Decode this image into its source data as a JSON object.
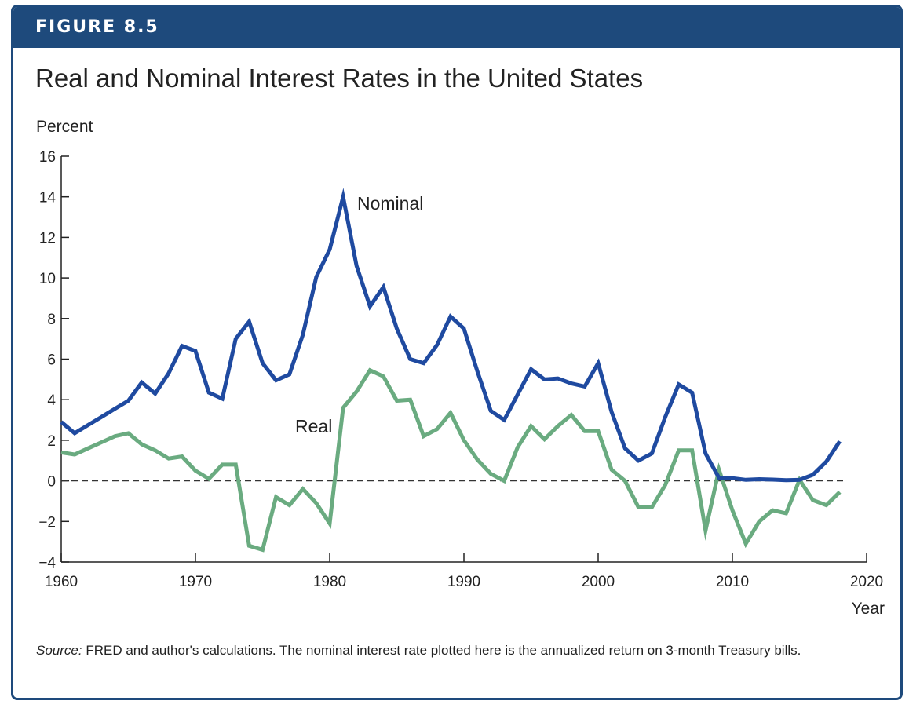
{
  "figure": {
    "label": "FIGURE 8.5",
    "title": "Real and Nominal Interest Rates in the United States",
    "source_prefix": "Source:",
    "source_text": " FRED and author's calculations. The nominal interest rate plotted here is the annualized return on 3-month Treasury bills."
  },
  "colors": {
    "frame": "#1e4a7c",
    "nominal": "#1f4aa0",
    "real": "#6aab80",
    "axis": "#222222"
  },
  "chart_data": {
    "type": "line",
    "title": "Real and Nominal Interest Rates in the United States",
    "xlabel": "Year",
    "ylabel": "Percent",
    "xlim": [
      1960,
      2020
    ],
    "ylim": [
      -4,
      16
    ],
    "xticks": [
      1960,
      1970,
      1980,
      1990,
      2000,
      2010,
      2020
    ],
    "yticks": [
      -4,
      -2,
      0,
      2,
      4,
      6,
      8,
      10,
      12,
      14,
      16
    ],
    "ytick_labels": [
      "−4",
      "−2",
      "0",
      "2",
      "4",
      "6",
      "8",
      "10",
      "12",
      "14",
      "16"
    ],
    "zero_line": "dashed",
    "grid": false,
    "x": [
      1960,
      1961,
      1962,
      1963,
      1964,
      1965,
      1966,
      1967,
      1968,
      1969,
      1970,
      1971,
      1972,
      1973,
      1974,
      1975,
      1976,
      1977,
      1978,
      1979,
      1980,
      1981,
      1982,
      1983,
      1984,
      1985,
      1986,
      1987,
      1988,
      1989,
      1990,
      1991,
      1992,
      1993,
      1994,
      1995,
      1996,
      1997,
      1998,
      1999,
      2000,
      2001,
      2002,
      2003,
      2004,
      2005,
      2006,
      2007,
      2008,
      2009,
      2010,
      2011,
      2012,
      2013,
      2014,
      2015,
      2016,
      2017,
      2018
    ],
    "series": [
      {
        "name": "Nominal",
        "color": "#1f4aa0",
        "values": [
          2.9,
          2.35,
          2.75,
          3.15,
          3.55,
          3.95,
          4.85,
          4.3,
          5.3,
          6.65,
          6.4,
          4.35,
          4.05,
          7.0,
          7.85,
          5.8,
          4.95,
          5.25,
          7.2,
          10.05,
          11.4,
          14.0,
          10.6,
          8.6,
          9.55,
          7.5,
          6.0,
          5.8,
          6.7,
          8.1,
          7.5,
          5.4,
          3.45,
          3.0,
          4.25,
          5.5,
          5.0,
          5.05,
          4.8,
          4.65,
          5.8,
          3.4,
          1.6,
          1.0,
          1.35,
          3.15,
          4.75,
          4.35,
          1.35,
          0.15,
          0.13,
          0.05,
          0.08,
          0.06,
          0.03,
          0.05,
          0.3,
          0.95,
          1.95
        ]
      },
      {
        "name": "Real",
        "color": "#6aab80",
        "values": [
          1.4,
          1.3,
          1.6,
          1.9,
          2.2,
          2.35,
          1.8,
          1.5,
          1.1,
          1.2,
          0.5,
          0.1,
          0.8,
          0.8,
          -3.2,
          -3.4,
          -0.8,
          -1.2,
          -0.4,
          -1.1,
          -2.1,
          3.6,
          4.4,
          5.45,
          5.15,
          3.95,
          4.0,
          2.2,
          2.55,
          3.35,
          2.0,
          1.05,
          0.35,
          0.0,
          1.65,
          2.7,
          2.05,
          2.7,
          3.25,
          2.45,
          2.45,
          0.55,
          0.0,
          -1.3,
          -1.3,
          -0.2,
          1.5,
          1.5,
          -2.45,
          0.55,
          -1.45,
          -3.1,
          -2.0,
          -1.45,
          -1.6,
          0.05,
          -0.95,
          -1.2,
          -0.55
        ]
      }
    ],
    "annotations": [
      {
        "text": "Nominal",
        "series": "Nominal"
      },
      {
        "text": "Real",
        "series": "Real"
      }
    ]
  }
}
